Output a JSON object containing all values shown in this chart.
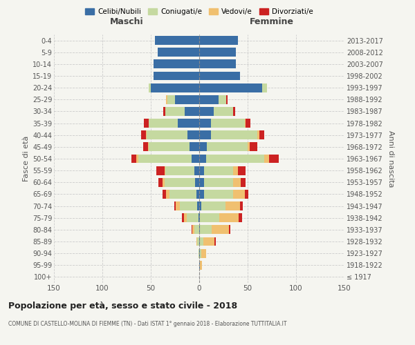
{
  "age_groups": [
    "100+",
    "95-99",
    "90-94",
    "85-89",
    "80-84",
    "75-79",
    "70-74",
    "65-69",
    "60-64",
    "55-59",
    "50-54",
    "45-49",
    "40-44",
    "35-39",
    "30-34",
    "25-29",
    "20-24",
    "15-19",
    "10-14",
    "5-9",
    "0-4"
  ],
  "birth_years": [
    "≤ 1917",
    "1918-1922",
    "1923-1927",
    "1928-1932",
    "1933-1937",
    "1938-1942",
    "1943-1947",
    "1948-1952",
    "1953-1957",
    "1958-1962",
    "1963-1967",
    "1968-1972",
    "1973-1977",
    "1978-1982",
    "1983-1987",
    "1988-1992",
    "1993-1997",
    "1998-2002",
    "2003-2007",
    "2008-2012",
    "2013-2017"
  ],
  "colors": {
    "celibi": "#3a6ea5",
    "coniugati": "#c5d9a0",
    "vedovi": "#f0c070",
    "divorziati": "#cc2222"
  },
  "males": {
    "celibi": [
      0,
      0,
      0,
      0,
      0,
      1,
      2,
      3,
      4,
      5,
      8,
      10,
      12,
      22,
      15,
      25,
      50,
      47,
      47,
      43,
      46
    ],
    "coniugati": [
      0,
      0,
      1,
      2,
      5,
      12,
      18,
      28,
      32,
      30,
      55,
      42,
      42,
      30,
      20,
      8,
      2,
      0,
      0,
      0,
      0
    ],
    "vedovi": [
      0,
      0,
      0,
      1,
      2,
      3,
      4,
      3,
      2,
      1,
      2,
      1,
      1,
      0,
      0,
      1,
      0,
      0,
      0,
      0,
      0
    ],
    "divorziati": [
      0,
      0,
      0,
      0,
      1,
      2,
      2,
      4,
      4,
      8,
      5,
      5,
      5,
      5,
      2,
      0,
      0,
      0,
      0,
      0,
      0
    ]
  },
  "females": {
    "celibi": [
      0,
      1,
      1,
      1,
      1,
      1,
      2,
      5,
      5,
      5,
      7,
      8,
      12,
      12,
      15,
      20,
      65,
      42,
      38,
      38,
      40
    ],
    "coniugati": [
      0,
      0,
      1,
      3,
      12,
      20,
      25,
      30,
      30,
      30,
      60,
      42,
      48,
      35,
      20,
      8,
      5,
      0,
      0,
      0,
      0
    ],
    "vedovi": [
      0,
      2,
      5,
      12,
      18,
      20,
      15,
      12,
      8,
      5,
      5,
      2,
      2,
      1,
      0,
      0,
      0,
      0,
      0,
      0,
      0
    ],
    "divorziati": [
      0,
      0,
      0,
      1,
      1,
      3,
      3,
      4,
      5,
      8,
      10,
      8,
      5,
      5,
      2,
      1,
      0,
      0,
      0,
      0,
      0
    ]
  },
  "title": "Popolazione per età, sesso e stato civile - 2018",
  "subtitle": "COMUNE DI CASTELLO-MOLINA DI FIEMME (TN) - Dati ISTAT 1° gennaio 2018 - Elaborazione TUTTITALIA.IT",
  "xlabel_left": "Maschi",
  "xlabel_right": "Femmine",
  "ylabel_left": "Fasce di età",
  "ylabel_right": "Anni di nascita",
  "xlim": 150,
  "background_color": "#f5f5f0",
  "grid_color": "#cccccc",
  "legend_labels": [
    "Celibi/Nubili",
    "Coniugati/e",
    "Vedovi/e",
    "Divorziati/e"
  ]
}
